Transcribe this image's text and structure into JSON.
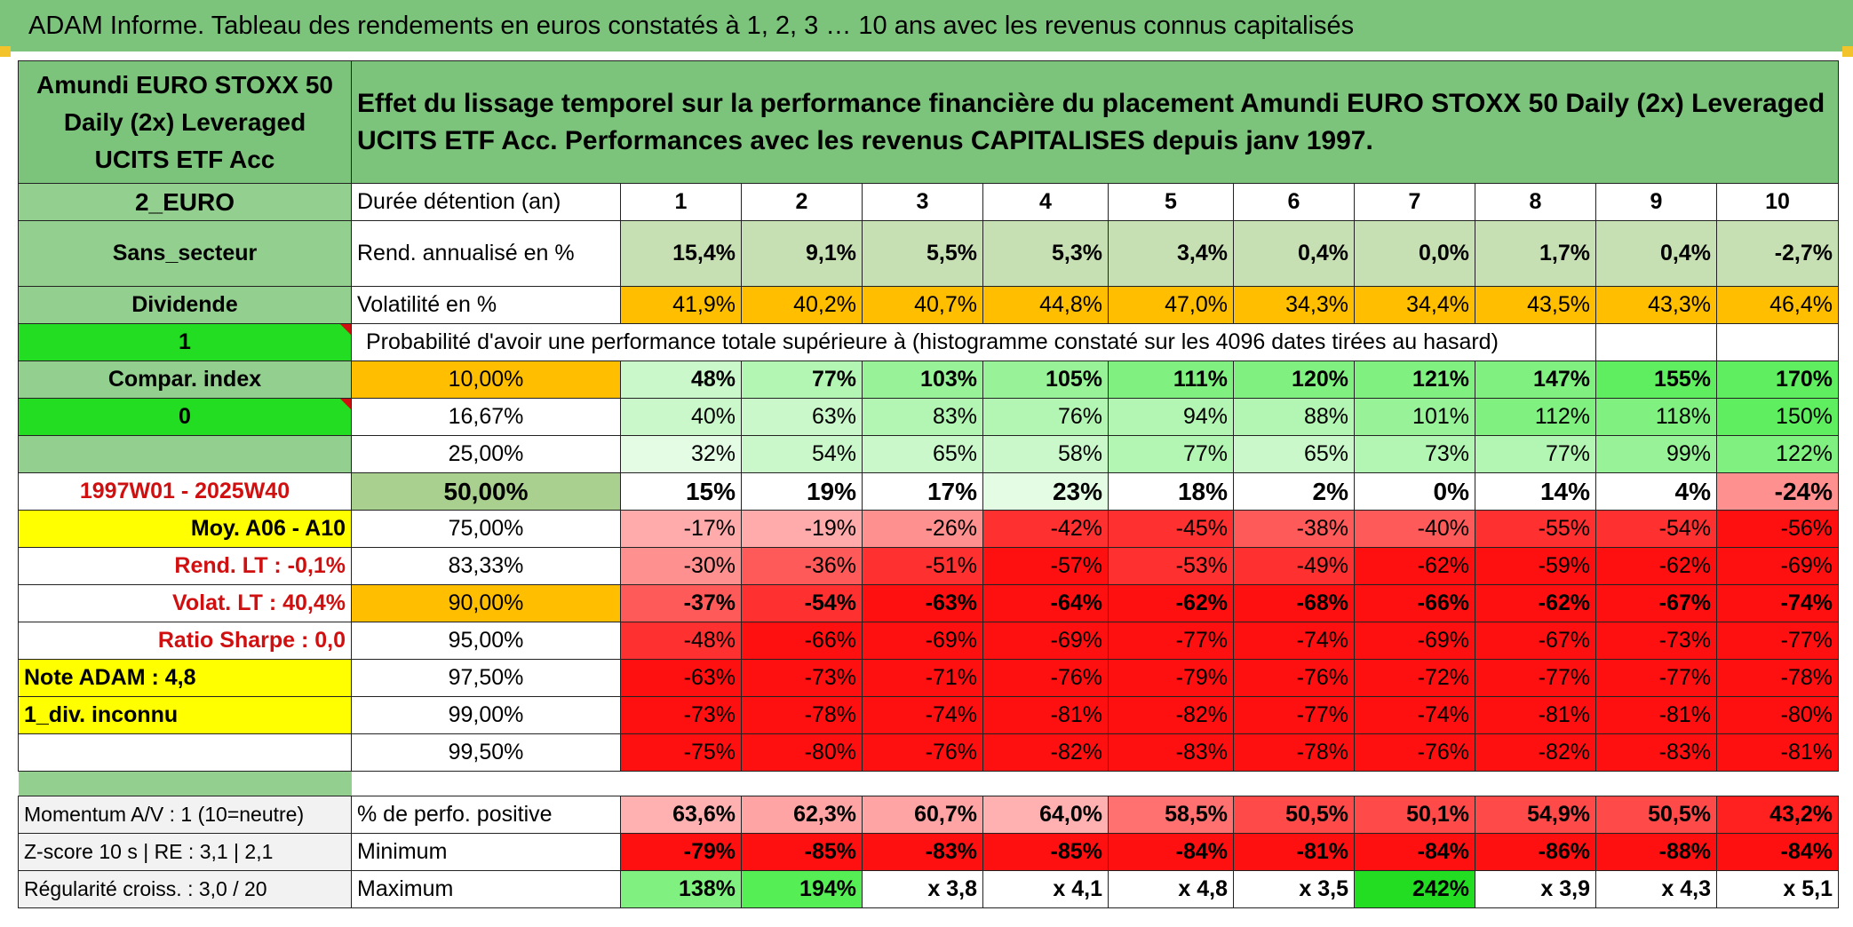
{
  "title": "ADAM Informe. Tableau des rendements en euros constatés à 1, 2, 3 … 10 ans avec les revenus connus capitalisés",
  "fund_name": "Amundi EURO STOXX 50 Daily (2x) Leveraged UCITS ETF Acc",
  "description": "Effet du lissage temporel sur la performance financière du placement Amundi EURO STOXX 50 Daily (2x) Leveraged UCITS ETF Acc. Performances avec les revenus CAPITALISES depuis janv 1997.",
  "side": {
    "currency": "2_EURO",
    "sector": "Sans_secteur",
    "dividend": "Dividende",
    "one": "1",
    "compar": "Compar. index",
    "zero": "0",
    "period": "1997W01 - 2025W40",
    "moy": "Moy. A06 - A10",
    "rend_lt": "Rend. LT :    -0,1%",
    "volat_lt": "Volat. LT :   40,4%",
    "sharpe": "Ratio Sharpe :    0,0",
    "note": "Note ADAM : 4,8",
    "div_inconnu": "1_div. inconnu",
    "momentum": "Momentum A/V : 1 (10=neutre)",
    "zscore": "Z-score 10 s | RE : 3,1 | 2,1",
    "regularite": "Régularité croiss. : 3,0 / 20"
  },
  "labels": {
    "duree": "Durée détention (an)",
    "rend": "Rend. annualisé en %",
    "vol": "Volatilité en %",
    "proba": "Probabilité d'avoir une performance totale supérieure à (histogramme constaté sur les 4096 dates tirées au hasard)",
    "pos": "% de perfo. positive",
    "min": "Minimum",
    "max": "Maximum"
  },
  "years": [
    "1",
    "2",
    "3",
    "4",
    "5",
    "6",
    "7",
    "8",
    "9",
    "10"
  ],
  "rend": [
    "15,4%",
    "9,1%",
    "5,5%",
    "5,3%",
    "3,4%",
    "0,4%",
    "0,0%",
    "1,7%",
    "0,4%",
    "-2,7%"
  ],
  "vol": [
    "41,9%",
    "40,2%",
    "40,7%",
    "44,8%",
    "47,0%",
    "34,3%",
    "34,4%",
    "43,5%",
    "43,3%",
    "46,4%"
  ],
  "quantiles": [
    {
      "label": "10,00%",
      "values": [
        "48%",
        "77%",
        "103%",
        "105%",
        "111%",
        "120%",
        "121%",
        "147%",
        "155%",
        "170%"
      ]
    },
    {
      "label": "16,67%",
      "values": [
        "40%",
        "63%",
        "83%",
        "76%",
        "94%",
        "88%",
        "101%",
        "112%",
        "118%",
        "150%"
      ]
    },
    {
      "label": "25,00%",
      "values": [
        "32%",
        "54%",
        "65%",
        "58%",
        "77%",
        "65%",
        "73%",
        "77%",
        "99%",
        "122%"
      ]
    },
    {
      "label": "50,00%",
      "values": [
        "15%",
        "19%",
        "17%",
        "23%",
        "18%",
        "2%",
        "0%",
        "14%",
        "4%",
        "-24%"
      ]
    },
    {
      "label": "75,00%",
      "values": [
        "-17%",
        "-19%",
        "-26%",
        "-42%",
        "-45%",
        "-38%",
        "-40%",
        "-55%",
        "-54%",
        "-56%"
      ]
    },
    {
      "label": "83,33%",
      "values": [
        "-30%",
        "-36%",
        "-51%",
        "-57%",
        "-53%",
        "-49%",
        "-62%",
        "-59%",
        "-62%",
        "-69%"
      ]
    },
    {
      "label": "90,00%",
      "values": [
        "-37%",
        "-54%",
        "-63%",
        "-64%",
        "-62%",
        "-68%",
        "-66%",
        "-62%",
        "-67%",
        "-74%"
      ]
    },
    {
      "label": "95,00%",
      "values": [
        "-48%",
        "-66%",
        "-69%",
        "-69%",
        "-77%",
        "-74%",
        "-69%",
        "-67%",
        "-73%",
        "-77%"
      ]
    },
    {
      "label": "97,50%",
      "values": [
        "-63%",
        "-73%",
        "-71%",
        "-76%",
        "-79%",
        "-76%",
        "-72%",
        "-77%",
        "-77%",
        "-78%"
      ]
    },
    {
      "label": "99,00%",
      "values": [
        "-73%",
        "-78%",
        "-74%",
        "-81%",
        "-82%",
        "-77%",
        "-74%",
        "-81%",
        "-81%",
        "-80%"
      ]
    },
    {
      "label": "99,50%",
      "values": [
        "-75%",
        "-80%",
        "-76%",
        "-82%",
        "-83%",
        "-78%",
        "-76%",
        "-82%",
        "-83%",
        "-81%"
      ]
    }
  ],
  "pos": [
    "63,6%",
    "62,3%",
    "60,7%",
    "64,0%",
    "58,5%",
    "50,5%",
    "50,1%",
    "54,9%",
    "50,5%",
    "43,2%"
  ],
  "min": [
    "-79%",
    "-85%",
    "-83%",
    "-85%",
    "-84%",
    "-81%",
    "-84%",
    "-86%",
    "-88%",
    "-84%"
  ],
  "max": [
    "138%",
    "194%",
    "x 3,8",
    "x 4,1",
    "x 4,8",
    "x 3,5",
    "242%",
    "x 3,9",
    "x 4,3",
    "x 5,1"
  ],
  "colors": {
    "title_bg": "#7cc47c",
    "rend_bg": "#c6e0b4",
    "vol_bg": "#ffbf00",
    "side_red_text": "#d01010"
  }
}
